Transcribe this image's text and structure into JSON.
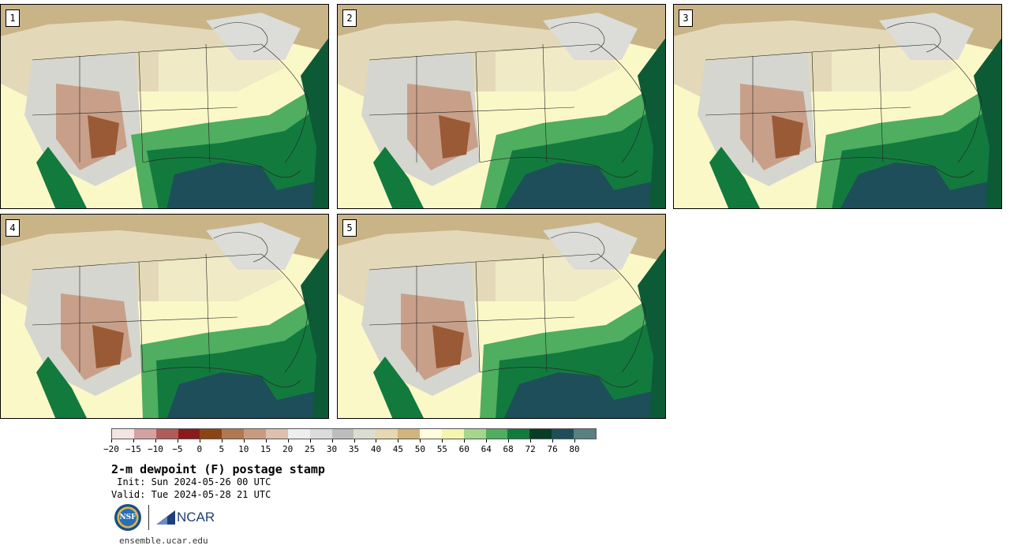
{
  "stamps": [
    {
      "label": "1"
    },
    {
      "label": "2"
    },
    {
      "label": "3"
    },
    {
      "label": "4"
    },
    {
      "label": "5"
    }
  ],
  "colorbar": {
    "colors": [
      "#f3e4e4",
      "#d4a1a1",
      "#b35a5a",
      "#8b1a1a",
      "#8b4513",
      "#b07850",
      "#c89b80",
      "#dcc0b0",
      "#eeeeee",
      "#dcdcdc",
      "#bdbdbd",
      "#dcdcd0",
      "#e6d8b0",
      "#d2b57a",
      "#ffffe0",
      "#f5f5b0",
      "#a4d68c",
      "#4fae5f",
      "#137a3e",
      "#073d24",
      "#1e4e5a",
      "#5a8080"
    ],
    "tick_labels": [
      "−20",
      "−15",
      "−10",
      "−5",
      "0",
      "5",
      "10",
      "15",
      "20",
      "25",
      "30",
      "35",
      "40",
      "45",
      "50",
      "55",
      "60",
      "64",
      "68",
      "72",
      "76",
      "80"
    ]
  },
  "title": "2-m dewpoint (F) postage stamp",
  "init": " Init: Sun 2024-05-26 00 UTC",
  "valid": "Valid: Tue 2024-05-28 21 UTC",
  "logos": {
    "nsf": "NSF",
    "ncar": "NCAR"
  },
  "footer_url": "ensemble.ucar.edu"
}
